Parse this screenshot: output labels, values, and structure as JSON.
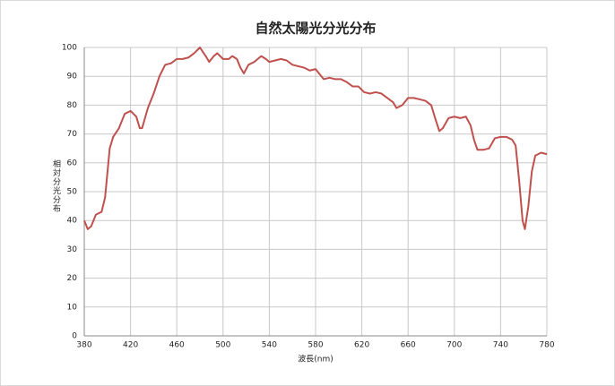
{
  "chart_data": {
    "type": "line",
    "title": "自然太陽光分光分布",
    "x_label": "波長(nm)",
    "y_label": "相対分光分布",
    "color": "#c0504d",
    "grid": true,
    "xlim": [
      380,
      780
    ],
    "xticks": [
      380,
      420,
      460,
      500,
      540,
      580,
      620,
      660,
      700,
      740,
      780
    ],
    "ylim": [
      0,
      100
    ],
    "yticks": [
      0,
      10,
      20,
      30,
      40,
      50,
      60,
      70,
      80,
      90,
      100
    ],
    "x": [
      380,
      383,
      386,
      390,
      395,
      398,
      402,
      405,
      410,
      415,
      420,
      425,
      428,
      430,
      435,
      440,
      445,
      450,
      455,
      460,
      465,
      470,
      475,
      480,
      485,
      488,
      492,
      495,
      500,
      505,
      508,
      512,
      515,
      518,
      522,
      527,
      533,
      537,
      540,
      545,
      550,
      555,
      560,
      565,
      570,
      575,
      580,
      583,
      587,
      592,
      597,
      602,
      607,
      612,
      617,
      622,
      627,
      632,
      637,
      642,
      647,
      650,
      655,
      660,
      665,
      670,
      675,
      680,
      683,
      687,
      690,
      695,
      700,
      705,
      710,
      714,
      717,
      720,
      725,
      730,
      735,
      740,
      745,
      750,
      753,
      756,
      759,
      761,
      764,
      767,
      770,
      775,
      780
    ],
    "values": [
      40,
      37,
      38,
      42,
      43,
      48,
      65,
      69,
      72,
      77,
      78,
      76,
      72,
      72,
      79,
      84,
      90,
      94,
      94.5,
      96,
      96,
      96.5,
      98,
      100,
      97,
      95,
      97,
      98,
      96,
      96,
      97,
      96,
      93,
      91,
      94,
      95,
      97,
      96,
      95,
      95.5,
      96,
      95.5,
      94,
      93.5,
      93,
      92,
      92.5,
      91,
      89,
      89.5,
      89,
      89,
      88,
      86.5,
      86.5,
      84.5,
      84,
      84.5,
      84,
      82.5,
      81,
      79,
      80,
      82.5,
      82.5,
      82,
      81.5,
      80,
      76,
      71,
      72,
      75.5,
      76,
      75.5,
      76,
      73,
      68,
      64.5,
      64.5,
      65,
      68.5,
      69,
      69,
      68,
      66,
      54,
      40,
      37,
      45,
      57,
      62.5,
      63.5,
      63
    ]
  }
}
